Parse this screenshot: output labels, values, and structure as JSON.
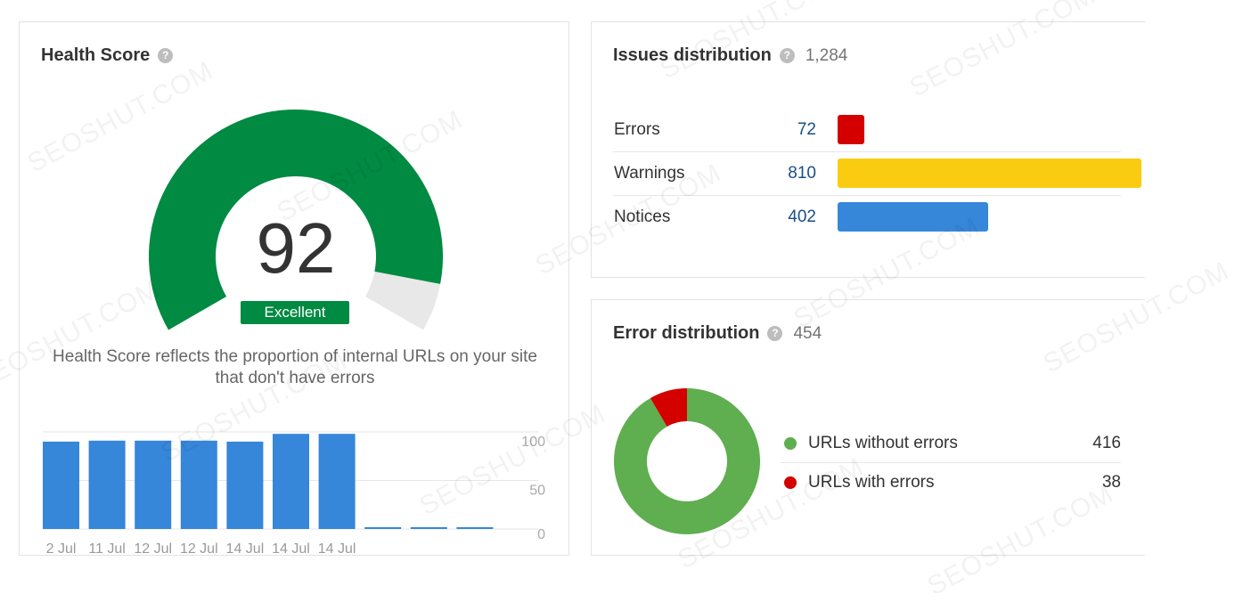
{
  "health": {
    "title": "Health Score",
    "help_icon": "?",
    "score": "92",
    "score_value": 92,
    "rating": "Excellent",
    "description": "Health Score reflects the proportion of internal URLs on your site that don't have errors",
    "colors": {
      "fill": "#008a42",
      "track": "#e8e8e8"
    },
    "history": {
      "type": "bar",
      "categories": [
        "2 Jul",
        "11 Jul",
        "12 Jul",
        "12 Jul",
        "14 Jul",
        "14 Jul",
        "14 Jul",
        "",
        "",
        ""
      ],
      "values": [
        90,
        91,
        91,
        91,
        90,
        98,
        98,
        0,
        0,
        0
      ],
      "ylim": [
        0,
        100
      ],
      "yticks": [
        "100",
        "50",
        "0"
      ],
      "bar_color": "#3686d9"
    }
  },
  "issues": {
    "title": "Issues distribution",
    "help_icon": "?",
    "total": "1,284",
    "rows": [
      {
        "label": "Errors",
        "value": "72",
        "count": 72,
        "color": "#d40000"
      },
      {
        "label": "Warnings",
        "value": "810",
        "count": 810,
        "color": "#f9cc12"
      },
      {
        "label": "Notices",
        "value": "402",
        "count": 402,
        "color": "#3686d9"
      }
    ]
  },
  "errors": {
    "title": "Error distribution",
    "help_icon": "?",
    "total": "454",
    "legend": [
      {
        "label": "URLs without errors",
        "value": "416",
        "count": 416,
        "color": "#5fae4f"
      },
      {
        "label": "URLs with errors",
        "value": "38",
        "count": 38,
        "color": "#d40000"
      }
    ]
  },
  "chart_data": [
    {
      "type": "bar",
      "categories": [
        "2 Jul",
        "11 Jul",
        "12 Jul",
        "12 Jul",
        "14 Jul",
        "14 Jul",
        "14 Jul",
        "",
        "",
        ""
      ],
      "values": [
        90,
        91,
        91,
        91,
        90,
        98,
        98,
        0,
        0,
        0
      ],
      "ylim": [
        0,
        100
      ]
    },
    {
      "type": "bar",
      "title": "Issues distribution",
      "categories": [
        "Errors",
        "Warnings",
        "Notices"
      ],
      "values": [
        72,
        810,
        402
      ]
    },
    {
      "type": "pie",
      "title": "Error distribution",
      "categories": [
        "URLs without errors",
        "URLs with errors"
      ],
      "values": [
        416,
        38
      ]
    }
  ],
  "watermark": "SEOSHUT.COM"
}
